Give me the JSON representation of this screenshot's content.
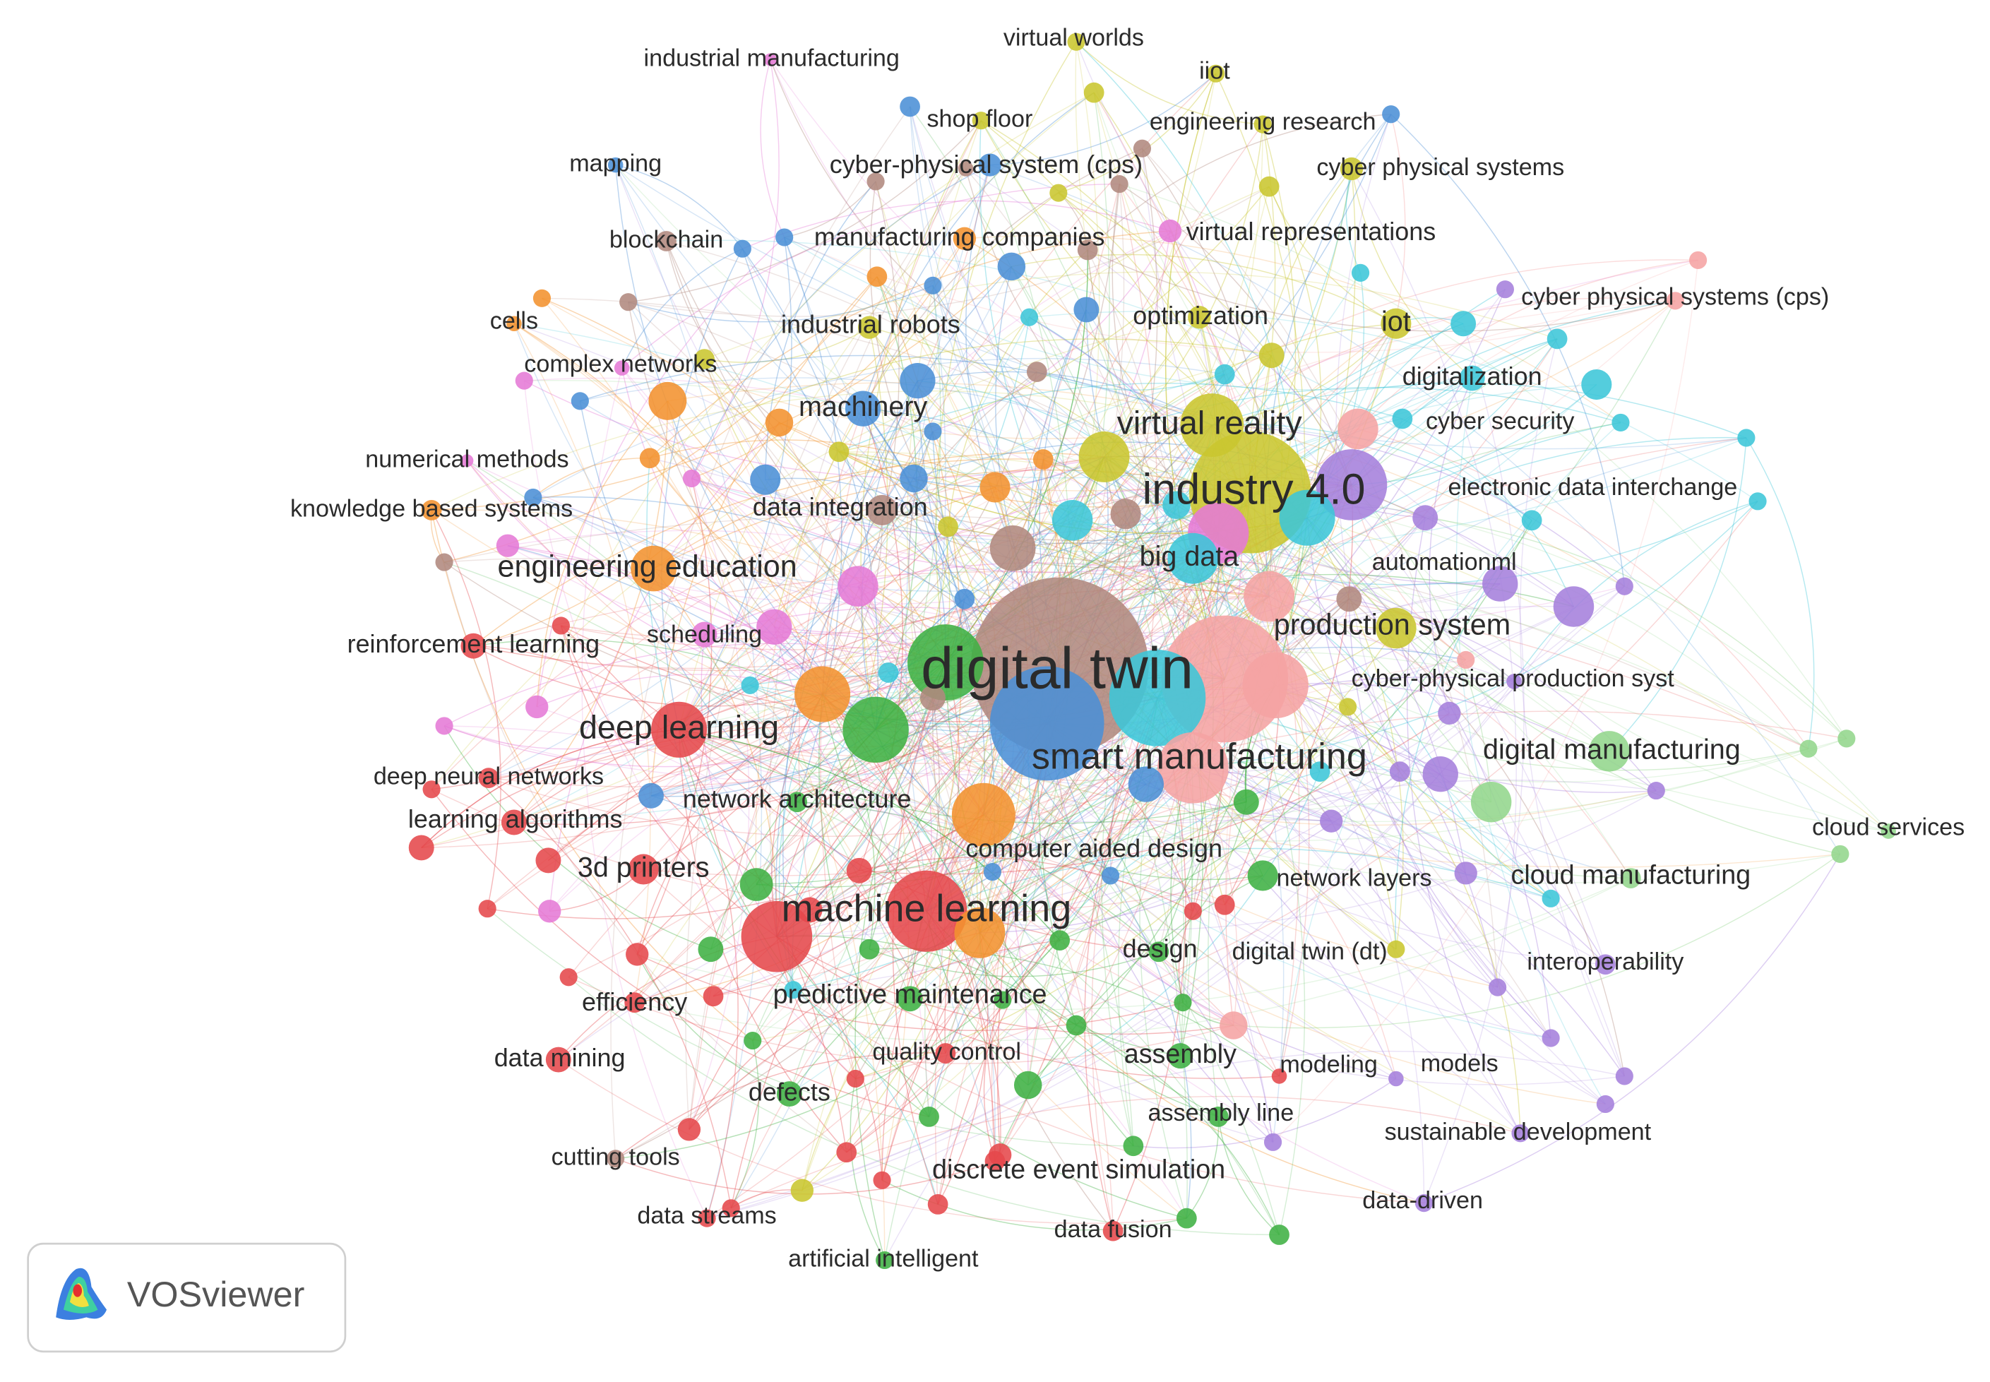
{
  "nodes": [
    {
      "label": "industrial manufacturing",
      "color": "#e57ad6"
    },
    {
      "label": "virtual worlds",
      "color": "#c9c62f"
    },
    {
      "label": "iiot",
      "color": "#c9c62f"
    },
    {
      "label": "shop floor",
      "color": "#c9c62f"
    },
    {
      "label": "engineering research",
      "color": "#c9c62f"
    },
    {
      "label": "mapping",
      "color": "#4b8fd6"
    },
    {
      "label": "cyber-physical system (cps)",
      "color": "#4b8fd6"
    },
    {
      "label": "cyber physical systems",
      "color": "#c9c62f"
    },
    {
      "label": "blockchain",
      "color": "#b0897e"
    },
    {
      "label": "manufacturing companies",
      "color": "#f2922f"
    },
    {
      "label": "virtual representations",
      "color": "#e57ad6"
    },
    {
      "label": "cyber physical systems (cps)",
      "color": "#f5a3a3"
    },
    {
      "label": "cells",
      "color": "#f2922f"
    },
    {
      "label": "industrial robots",
      "color": "#c9c62f"
    },
    {
      "label": "optimization",
      "color": "#c9c62f"
    },
    {
      "label": "iot",
      "color": "#c9c62f"
    },
    {
      "label": "complex networks",
      "color": "#e57ad6"
    },
    {
      "label": "digitalization",
      "color": "#3cc6d8"
    },
    {
      "label": "machinery",
      "color": "#4b8fd6"
    },
    {
      "label": "virtual reality",
      "color": "#c9c62f"
    },
    {
      "label": "cyber security",
      "color": "#3cc6d8"
    },
    {
      "label": "numerical methods",
      "color": "#e57ad6"
    },
    {
      "label": "electronic data interchange",
      "color": "#a57fdc"
    },
    {
      "label": "knowledge based systems",
      "color": "#f2922f"
    },
    {
      "label": "data integration",
      "color": "#b0897e"
    },
    {
      "label": "big data",
      "color": "#3cc6d8"
    },
    {
      "label": "engineering education",
      "color": "#f2922f"
    },
    {
      "label": "automationml",
      "color": "#a57fdc"
    },
    {
      "label": "production system",
      "color": "#c9c62f"
    },
    {
      "label": "reinforcement learning",
      "color": "#e5484b"
    },
    {
      "label": "scheduling",
      "color": "#e57ad6"
    },
    {
      "label": "cyber-physical production syst",
      "color": "#a57fdc"
    },
    {
      "label": "deep learning",
      "color": "#e5484b"
    },
    {
      "label": "digital manufacturing",
      "color": "#93d68c"
    },
    {
      "label": "deep neural networks",
      "color": "#e5484b"
    },
    {
      "label": "network architecture",
      "color": "#3fb043"
    },
    {
      "label": "learning algorithms",
      "color": "#e5484b"
    },
    {
      "label": "cloud services",
      "color": "#93d68c"
    },
    {
      "label": "computer aided design",
      "color": "#f2922f"
    },
    {
      "label": "3d printers",
      "color": "#e5484b"
    },
    {
      "label": "network layers",
      "color": "#3fb043"
    },
    {
      "label": "cloud manufacturing",
      "color": "#93d68c"
    },
    {
      "label": "machine learning",
      "color": "#e5484b"
    },
    {
      "label": "design",
      "color": "#3fb043"
    },
    {
      "label": "digital twin (dt)",
      "color": "#c9c62f"
    },
    {
      "label": "interoperability",
      "color": "#a57fdc"
    },
    {
      "label": "efficiency",
      "color": "#e5484b"
    },
    {
      "label": "predictive maintenance",
      "color": "#3fb043"
    },
    {
      "label": "data mining",
      "color": "#e5484b"
    },
    {
      "label": "quality control",
      "color": "#e5484b"
    },
    {
      "label": "assembly",
      "color": "#3fb043"
    },
    {
      "label": "modeling",
      "color": "#e5484b"
    },
    {
      "label": "models",
      "color": "#a57fdc"
    },
    {
      "label": "defects",
      "color": "#3fb043"
    },
    {
      "label": "assembly line",
      "color": "#3fb043"
    },
    {
      "label": "sustainable development",
      "color": "#a57fdc"
    },
    {
      "label": "cutting tools",
      "color": "#b0897e"
    },
    {
      "label": "discrete event simulation",
      "color": "#e5484b"
    },
    {
      "label": "data-driven",
      "color": "#a57fdc"
    },
    {
      "label": "data streams",
      "color": "#e5484b"
    },
    {
      "label": "data fusion",
      "color": "#e5484b"
    },
    {
      "label": "artificial intelligent",
      "color": "#3fb043"
    },
    {
      "label": "smart manufacturing",
      "color": "#4b8fd6"
    },
    {
      "label": "industry 4.0",
      "color": "#c9c62f"
    },
    {
      "label": "digital twin",
      "color": "#b0897e"
    }
  ],
  "logo": {
    "text": "VOSviewer"
  }
}
